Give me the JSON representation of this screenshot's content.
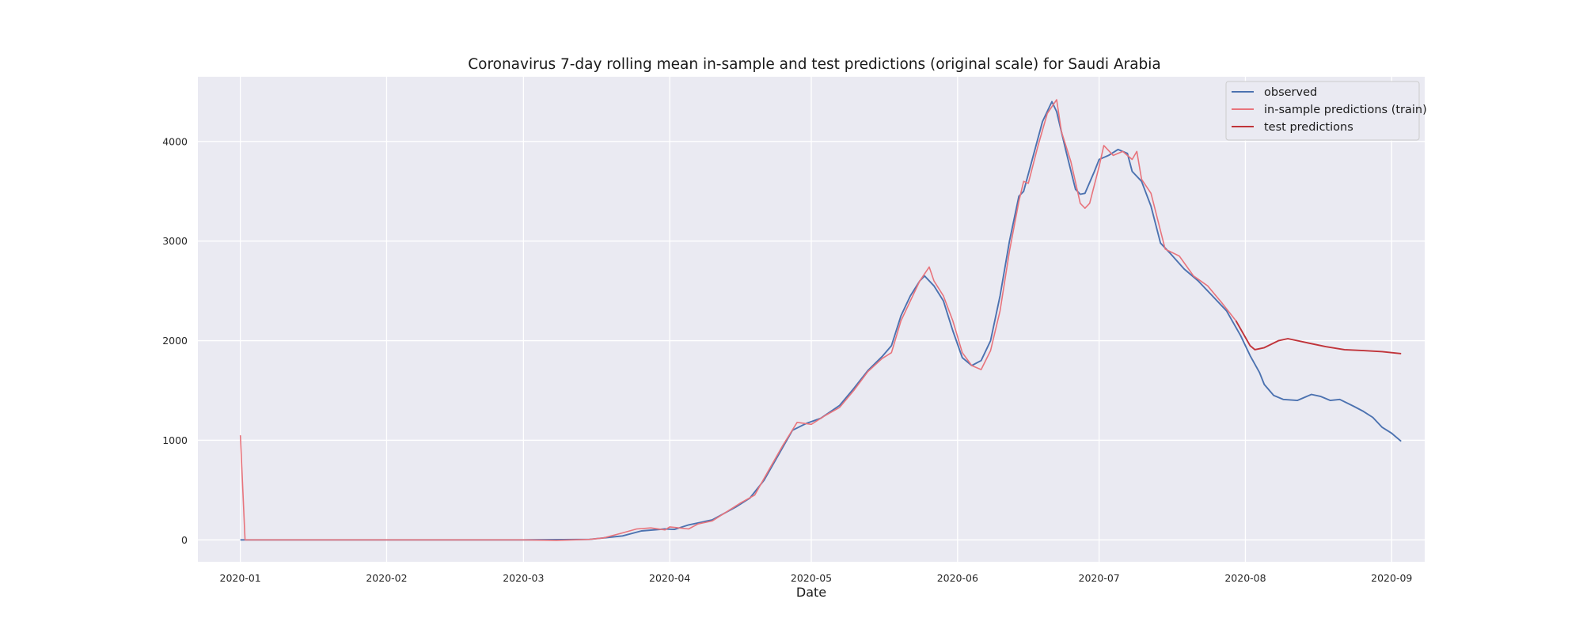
{
  "chart_data": {
    "type": "line",
    "title": "Coronavirus 7-day rolling mean in-sample and test predictions (original scale) for Saudi Arabia",
    "xlabel": "Date",
    "ylabel": "",
    "xlim": [
      "2019-12-23",
      "2020-09-08"
    ],
    "ylim": [
      -220,
      4650
    ],
    "x_ticks": [
      {
        "date": "2020-01-01",
        "label": "2020-01"
      },
      {
        "date": "2020-02-01",
        "label": "2020-02"
      },
      {
        "date": "2020-03-01",
        "label": "2020-03"
      },
      {
        "date": "2020-04-01",
        "label": "2020-04"
      },
      {
        "date": "2020-05-01",
        "label": "2020-05"
      },
      {
        "date": "2020-06-01",
        "label": "2020-06"
      },
      {
        "date": "2020-07-01",
        "label": "2020-07"
      },
      {
        "date": "2020-08-01",
        "label": "2020-08"
      },
      {
        "date": "2020-09-01",
        "label": "2020-09"
      }
    ],
    "y_ticks": [
      0,
      1000,
      2000,
      3000,
      4000
    ],
    "grid": true,
    "legend_position": "top-right",
    "series": [
      {
        "name": "observed",
        "color": "#4c72b0",
        "points": [
          [
            "2020-01-01",
            0
          ],
          [
            "2020-03-01",
            0
          ],
          [
            "2020-03-15",
            5
          ],
          [
            "2020-03-22",
            40
          ],
          [
            "2020-03-26",
            90
          ],
          [
            "2020-03-31",
            110
          ],
          [
            "2020-04-02",
            105
          ],
          [
            "2020-04-05",
            150
          ],
          [
            "2020-04-10",
            200
          ],
          [
            "2020-04-15",
            330
          ],
          [
            "2020-04-18",
            420
          ],
          [
            "2020-04-21",
            600
          ],
          [
            "2020-04-24",
            850
          ],
          [
            "2020-04-27",
            1100
          ],
          [
            "2020-04-30",
            1170
          ],
          [
            "2020-05-03",
            1220
          ],
          [
            "2020-05-07",
            1350
          ],
          [
            "2020-05-10",
            1520
          ],
          [
            "2020-05-13",
            1700
          ],
          [
            "2020-05-16",
            1840
          ],
          [
            "2020-05-18",
            1950
          ],
          [
            "2020-05-20",
            2250
          ],
          [
            "2020-05-22",
            2450
          ],
          [
            "2020-05-24",
            2600
          ],
          [
            "2020-05-25",
            2650
          ],
          [
            "2020-05-27",
            2550
          ],
          [
            "2020-05-29",
            2400
          ],
          [
            "2020-05-31",
            2100
          ],
          [
            "2020-06-02",
            1830
          ],
          [
            "2020-06-04",
            1750
          ],
          [
            "2020-06-06",
            1800
          ],
          [
            "2020-06-08",
            2000
          ],
          [
            "2020-06-10",
            2450
          ],
          [
            "2020-06-12",
            3000
          ],
          [
            "2020-06-14",
            3450
          ],
          [
            "2020-06-15",
            3500
          ],
          [
            "2020-06-17",
            3850
          ],
          [
            "2020-06-19",
            4200
          ],
          [
            "2020-06-21",
            4400
          ],
          [
            "2020-06-22",
            4300
          ],
          [
            "2020-06-24",
            3900
          ],
          [
            "2020-06-26",
            3520
          ],
          [
            "2020-06-27",
            3470
          ],
          [
            "2020-06-28",
            3480
          ],
          [
            "2020-06-30",
            3700
          ],
          [
            "2020-07-01",
            3820
          ],
          [
            "2020-07-03",
            3860
          ],
          [
            "2020-07-05",
            3920
          ],
          [
            "2020-07-07",
            3880
          ],
          [
            "2020-07-08",
            3700
          ],
          [
            "2020-07-10",
            3600
          ],
          [
            "2020-07-12",
            3350
          ],
          [
            "2020-07-14",
            2980
          ],
          [
            "2020-07-16",
            2880
          ],
          [
            "2020-07-19",
            2720
          ],
          [
            "2020-07-22",
            2600
          ],
          [
            "2020-07-25",
            2450
          ],
          [
            "2020-07-28",
            2300
          ],
          [
            "2020-07-31",
            2050
          ],
          [
            "2020-08-02",
            1850
          ],
          [
            "2020-08-04",
            1680
          ],
          [
            "2020-08-05",
            1560
          ],
          [
            "2020-08-07",
            1450
          ],
          [
            "2020-08-09",
            1410
          ],
          [
            "2020-08-12",
            1400
          ],
          [
            "2020-08-15",
            1460
          ],
          [
            "2020-08-17",
            1440
          ],
          [
            "2020-08-19",
            1400
          ],
          [
            "2020-08-21",
            1410
          ],
          [
            "2020-08-24",
            1340
          ],
          [
            "2020-08-26",
            1290
          ],
          [
            "2020-08-28",
            1230
          ],
          [
            "2020-08-30",
            1130
          ],
          [
            "2020-09-01",
            1070
          ],
          [
            "2020-09-03",
            990
          ]
        ]
      },
      {
        "name": "in-sample predictions (train)",
        "color": "#e8747c",
        "points": [
          [
            "2020-01-01",
            1050
          ],
          [
            "2020-01-02",
            0
          ],
          [
            "2020-03-01",
            0
          ],
          [
            "2020-03-08",
            -5
          ],
          [
            "2020-03-15",
            5
          ],
          [
            "2020-03-18",
            20
          ],
          [
            "2020-03-22",
            70
          ],
          [
            "2020-03-25",
            110
          ],
          [
            "2020-03-28",
            120
          ],
          [
            "2020-03-31",
            100
          ],
          [
            "2020-04-01",
            130
          ],
          [
            "2020-04-03",
            120
          ],
          [
            "2020-04-05",
            110
          ],
          [
            "2020-04-07",
            160
          ],
          [
            "2020-04-10",
            190
          ],
          [
            "2020-04-13",
            280
          ],
          [
            "2020-04-16",
            370
          ],
          [
            "2020-04-19",
            450
          ],
          [
            "2020-04-22",
            700
          ],
          [
            "2020-04-25",
            950
          ],
          [
            "2020-04-28",
            1180
          ],
          [
            "2020-05-01",
            1160
          ],
          [
            "2020-05-04",
            1250
          ],
          [
            "2020-05-07",
            1330
          ],
          [
            "2020-05-10",
            1500
          ],
          [
            "2020-05-13",
            1690
          ],
          [
            "2020-05-16",
            1820
          ],
          [
            "2020-05-18",
            1880
          ],
          [
            "2020-05-20",
            2200
          ],
          [
            "2020-05-22",
            2400
          ],
          [
            "2020-05-24",
            2600
          ],
          [
            "2020-05-26",
            2740
          ],
          [
            "2020-05-27",
            2600
          ],
          [
            "2020-05-29",
            2450
          ],
          [
            "2020-05-31",
            2200
          ],
          [
            "2020-06-02",
            1880
          ],
          [
            "2020-06-04",
            1750
          ],
          [
            "2020-06-06",
            1710
          ],
          [
            "2020-06-08",
            1900
          ],
          [
            "2020-06-10",
            2300
          ],
          [
            "2020-06-12",
            2900
          ],
          [
            "2020-06-14",
            3400
          ],
          [
            "2020-06-15",
            3600
          ],
          [
            "2020-06-16",
            3580
          ],
          [
            "2020-06-18",
            3950
          ],
          [
            "2020-06-20",
            4280
          ],
          [
            "2020-06-22",
            4420
          ],
          [
            "2020-06-23",
            4100
          ],
          [
            "2020-06-25",
            3800
          ],
          [
            "2020-06-27",
            3380
          ],
          [
            "2020-06-28",
            3330
          ],
          [
            "2020-06-29",
            3380
          ],
          [
            "2020-07-01",
            3750
          ],
          [
            "2020-07-02",
            3960
          ],
          [
            "2020-07-04",
            3860
          ],
          [
            "2020-07-06",
            3900
          ],
          [
            "2020-07-08",
            3820
          ],
          [
            "2020-07-09",
            3900
          ],
          [
            "2020-07-10",
            3620
          ],
          [
            "2020-07-12",
            3480
          ],
          [
            "2020-07-15",
            2920
          ],
          [
            "2020-07-18",
            2850
          ],
          [
            "2020-07-21",
            2650
          ],
          [
            "2020-07-24",
            2550
          ],
          [
            "2020-07-27",
            2380
          ],
          [
            "2020-07-30",
            2200
          ]
        ]
      },
      {
        "name": "test predictions",
        "color": "#c0343a",
        "points": [
          [
            "2020-07-30",
            2200
          ],
          [
            "2020-08-02",
            1950
          ],
          [
            "2020-08-03",
            1910
          ],
          [
            "2020-08-05",
            1930
          ],
          [
            "2020-08-08",
            2000
          ],
          [
            "2020-08-10",
            2020
          ],
          [
            "2020-08-14",
            1980
          ],
          [
            "2020-08-18",
            1940
          ],
          [
            "2020-08-22",
            1910
          ],
          [
            "2020-08-26",
            1900
          ],
          [
            "2020-08-30",
            1890
          ],
          [
            "2020-09-03",
            1870
          ]
        ]
      }
    ]
  }
}
